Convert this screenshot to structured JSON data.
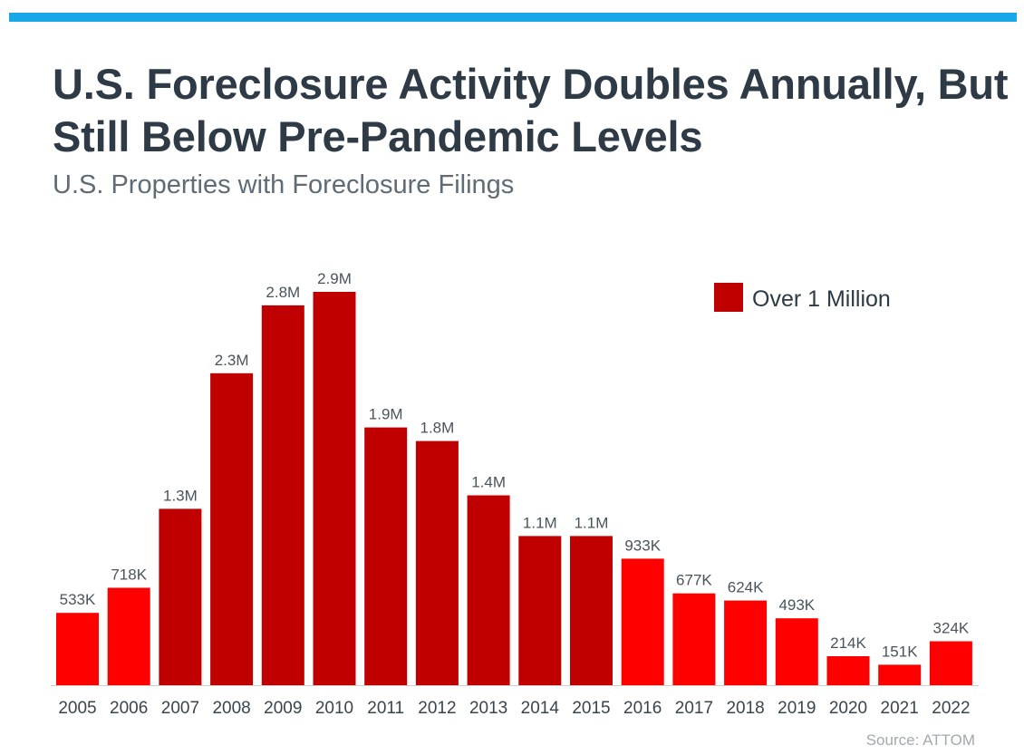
{
  "header": {
    "title": "U.S. Foreclosure Activity Doubles Annually, But Still Below Pre-Pandemic Levels",
    "subtitle": "U.S. Properties with Foreclosure Filings"
  },
  "footer": {
    "source": "Source: ATTOM"
  },
  "colors": {
    "accent_bar": "#1aa7e8",
    "under_1m": "#ff0000",
    "over_1m": "#c00000"
  },
  "chart_data": {
    "type": "bar",
    "title": "U.S. Foreclosure Activity Doubles Annually, But Still Below Pre-Pandemic Levels",
    "subtitle": "U.S. Properties with Foreclosure Filings",
    "categories": [
      "2005",
      "2006",
      "2007",
      "2008",
      "2009",
      "2010",
      "2011",
      "2012",
      "2013",
      "2014",
      "2015",
      "2016",
      "2017",
      "2018",
      "2019",
      "2020",
      "2021",
      "2022"
    ],
    "values": [
      533000,
      718000,
      1300000,
      2300000,
      2800000,
      2900000,
      1900000,
      1800000,
      1400000,
      1100000,
      1100000,
      933000,
      677000,
      624000,
      493000,
      214000,
      151000,
      324000
    ],
    "labels": [
      "533K",
      "718K",
      "1.3M",
      "2.3M",
      "2.8M",
      "2.9M",
      "1.9M",
      "1.8M",
      "1.4M",
      "1.1M",
      "1.1M",
      "933K",
      "677K",
      "624K",
      "493K",
      "214K",
      "151K",
      "324K"
    ],
    "over_1m": [
      false,
      false,
      true,
      true,
      true,
      true,
      true,
      true,
      true,
      true,
      true,
      false,
      false,
      false,
      false,
      false,
      false,
      false
    ],
    "ylim": [
      0,
      3000000
    ],
    "grid": false,
    "legend": {
      "position": "top-right",
      "entries": [
        {
          "label": "Over 1 Million",
          "color": "#c00000"
        }
      ]
    },
    "xlabel": "",
    "ylabel": ""
  }
}
